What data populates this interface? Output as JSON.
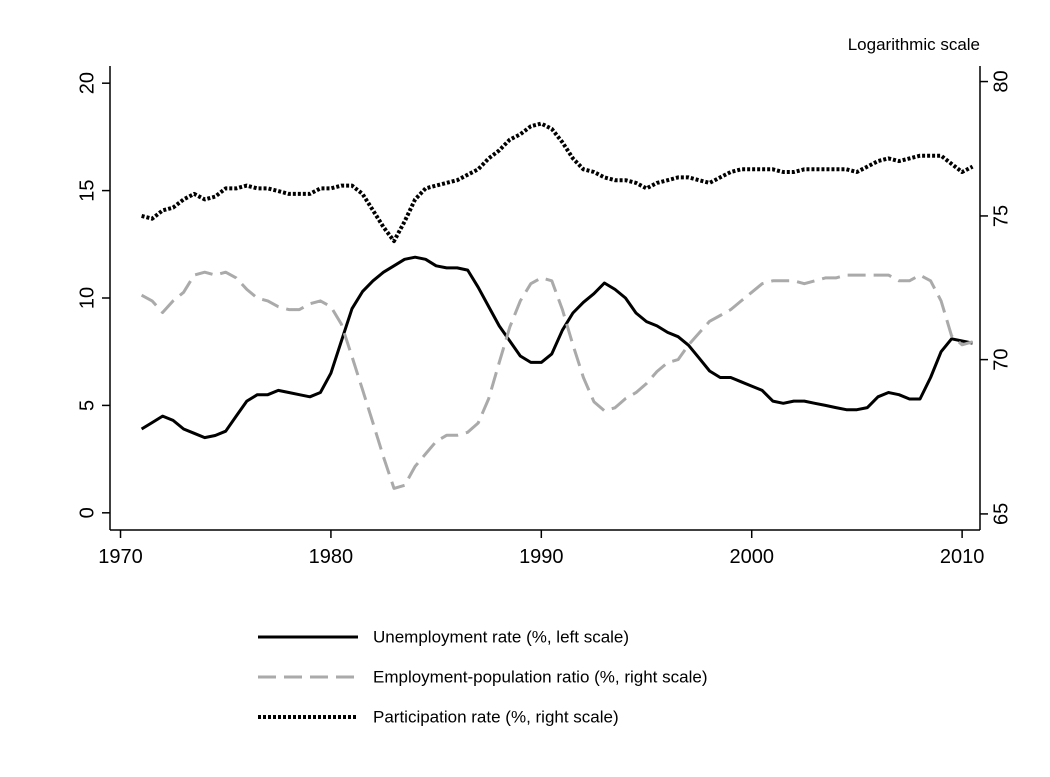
{
  "chart_data": {
    "type": "line",
    "annotation": "Logarithmic scale",
    "x": [
      1971,
      1971.5,
      1972,
      1972.5,
      1973,
      1973.5,
      1974,
      1974.5,
      1975,
      1975.5,
      1976,
      1976.5,
      1977,
      1977.5,
      1978,
      1978.5,
      1979,
      1979.5,
      1980,
      1980.5,
      1981,
      1981.5,
      1982,
      1982.5,
      1983,
      1983.5,
      1984,
      1984.5,
      1985,
      1985.5,
      1986,
      1986.5,
      1987,
      1987.5,
      1988,
      1988.5,
      1989,
      1989.5,
      1990,
      1990.5,
      1991,
      1991.5,
      1992,
      1992.5,
      1993,
      1993.5,
      1994,
      1994.5,
      1995,
      1995.5,
      1996,
      1996.5,
      1997,
      1997.5,
      1998,
      1998.5,
      1999,
      1999.5,
      2000,
      2000.5,
      2001,
      2001.5,
      2002,
      2002.5,
      2003,
      2003.5,
      2004,
      2004.5,
      2005,
      2005.5,
      2006,
      2006.5,
      2007,
      2007.5,
      2008,
      2008.5,
      2009,
      2009.5,
      2010,
      2010.5
    ],
    "series": [
      {
        "name": "Unemployment rate (%, left scale)",
        "color": "#000000",
        "linestyle": "solid",
        "values": [
          3.9,
          4.2,
          4.5,
          4.3,
          3.9,
          3.7,
          3.5,
          3.6,
          3.8,
          4.5,
          5.2,
          5.5,
          5.5,
          5.7,
          5.6,
          5.5,
          5.4,
          5.6,
          6.5,
          8.0,
          9.5,
          10.3,
          10.8,
          11.2,
          11.5,
          11.8,
          11.9,
          11.8,
          11.5,
          11.4,
          11.4,
          11.3,
          10.5,
          9.6,
          8.7,
          8.0,
          7.3,
          7.0,
          7.0,
          7.4,
          8.5,
          9.3,
          9.8,
          10.2,
          10.7,
          10.4,
          10.0,
          9.3,
          8.9,
          8.7,
          8.4,
          8.2,
          7.8,
          7.2,
          6.6,
          6.3,
          6.3,
          6.1,
          5.9,
          5.7,
          5.2,
          5.1,
          5.2,
          5.2,
          5.1,
          5.0,
          4.9,
          4.8,
          4.8,
          4.9,
          5.4,
          5.6,
          5.5,
          5.3,
          5.3,
          6.3,
          7.5,
          8.1,
          8.0,
          7.9
        ]
      },
      {
        "name": "Employment-population ratio (%, right scale)",
        "color": "#aaaaaa",
        "linestyle": "dashed",
        "axis": "y2",
        "values": [
          72.2,
          72.0,
          71.6,
          72.0,
          72.3,
          72.9,
          73.0,
          72.9,
          73.0,
          72.8,
          72.4,
          72.1,
          72.0,
          71.8,
          71.7,
          71.7,
          71.9,
          72.0,
          71.8,
          71.2,
          70.1,
          69.0,
          67.9,
          66.8,
          65.8,
          65.9,
          66.5,
          66.9,
          67.3,
          67.5,
          67.5,
          67.6,
          67.9,
          68.7,
          69.9,
          71.1,
          72.0,
          72.6,
          72.8,
          72.7,
          71.7,
          70.5,
          69.4,
          68.6,
          68.3,
          68.4,
          68.7,
          68.9,
          69.2,
          69.6,
          69.9,
          70.0,
          70.5,
          70.9,
          71.3,
          71.5,
          71.7,
          72.0,
          72.3,
          72.6,
          72.7,
          72.7,
          72.7,
          72.6,
          72.7,
          72.8,
          72.8,
          72.9,
          72.9,
          72.9,
          72.9,
          72.9,
          72.7,
          72.7,
          72.9,
          72.7,
          72.0,
          70.8,
          70.5,
          70.6
        ]
      },
      {
        "name": "Participation rate (%, right scale)",
        "color": "#000000",
        "linestyle": "dotted",
        "axis": "y2",
        "values": [
          75.0,
          74.9,
          75.2,
          75.3,
          75.6,
          75.8,
          75.6,
          75.7,
          76.0,
          76.0,
          76.1,
          76.0,
          76.0,
          75.9,
          75.8,
          75.8,
          75.8,
          76.0,
          76.0,
          76.1,
          76.1,
          75.8,
          75.2,
          74.6,
          74.1,
          74.8,
          75.6,
          76.0,
          76.1,
          76.2,
          76.3,
          76.5,
          76.7,
          77.1,
          77.4,
          77.8,
          78.0,
          78.3,
          78.4,
          78.2,
          77.7,
          77.1,
          76.7,
          76.6,
          76.4,
          76.3,
          76.3,
          76.2,
          76.0,
          76.2,
          76.3,
          76.4,
          76.4,
          76.3,
          76.2,
          76.4,
          76.6,
          76.7,
          76.7,
          76.7,
          76.7,
          76.6,
          76.6,
          76.7,
          76.7,
          76.7,
          76.7,
          76.7,
          76.6,
          76.8,
          77.0,
          77.1,
          77.0,
          77.1,
          77.2,
          77.2,
          77.2,
          76.9,
          76.6,
          76.8
        ]
      }
    ],
    "xlim": [
      1969.5,
      2010.85
    ],
    "xticks": [
      1970,
      1980,
      1990,
      2000,
      2010
    ],
    "ylim": [
      -0.8,
      20.8
    ],
    "yticks": [
      0,
      5,
      10,
      15,
      20
    ],
    "y2lim": [
      64.5,
      80.6
    ],
    "y2ticks": [
      65,
      70,
      75,
      80
    ],
    "y2scale": "log",
    "grid": false,
    "legend": "bottom"
  }
}
